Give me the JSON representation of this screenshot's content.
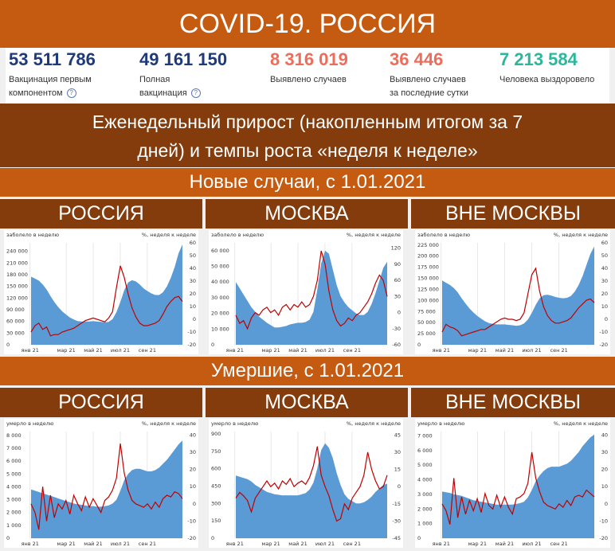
{
  "title": "COVID-19. РОССИЯ",
  "stats": [
    {
      "value": "53 511 786",
      "label_lines": [
        "Вакцинация первым",
        "компонентом"
      ],
      "help": true,
      "color": "#1f3a7a"
    },
    {
      "value": "49 161 150",
      "label_lines": [
        "Полная",
        "вакцинация"
      ],
      "help": true,
      "color": "#1f3a7a"
    },
    {
      "value": "8 316 019",
      "label_lines": [
        "Выявлено случаев"
      ],
      "help": false,
      "color": "#ef6c5a"
    },
    {
      "value": "36 446",
      "label_lines": [
        "Выявлено случаев",
        "за последние сутки"
      ],
      "help": false,
      "color": "#ef6c5a"
    },
    {
      "value": "7 213 584",
      "label_lines": [
        "Человека выздоровело"
      ],
      "help": false,
      "color": "#2cb79a"
    }
  ],
  "help_glyph": "?",
  "subtitle_lines": [
    "Еженедельный прирост (накопленным итогом за 7",
    "дней) и темпы роста «неделя к неделе»"
  ],
  "section_cases": "Новые случаи, с 1.01.2021",
  "section_deaths": "Умершие, с 1.01.2021",
  "colors": {
    "area": "#5b9bd5",
    "line": "#c00000",
    "dark_band": "#843c0c",
    "orange_band": "#c55a11"
  },
  "chart_data": [
    {
      "type": "area",
      "panel": "РОССИЯ",
      "left_axis_title": "заболело в неделю",
      "right_axis_title": "%, неделя к неделе",
      "x_ticks": [
        "янв 21",
        "мар 21",
        "май 21",
        "июл 21",
        "сен 21"
      ],
      "y_left_ticks": [
        0,
        30000,
        60000,
        90000,
        120000,
        150000,
        180000,
        210000,
        240000
      ],
      "y_left_labels": [
        "0",
        "30 000",
        "60 000",
        "90 000",
        "120 000",
        "150 000",
        "180 000",
        "210 000",
        "240 000"
      ],
      "ylim_left": [
        0,
        262000
      ],
      "y_right_ticks": [
        -20,
        -10,
        0,
        10,
        20,
        30,
        40,
        50,
        60
      ],
      "ylim_right": [
        -20,
        60
      ],
      "series": [
        {
          "kind": "area",
          "axis": "left",
          "values": [
            175000,
            170000,
            165000,
            155000,
            142000,
            125000,
            110000,
            97000,
            86000,
            78000,
            70000,
            65000,
            61000,
            60000,
            60000,
            60000,
            61000,
            60000,
            59000,
            58000,
            59000,
            66000,
            84000,
            110000,
            140000,
            160000,
            166000,
            163000,
            155000,
            145000,
            138000,
            132000,
            128000,
            128000,
            135000,
            150000,
            172000,
            200000,
            235000,
            258000
          ]
        },
        {
          "kind": "line",
          "axis": "right",
          "values": [
            -10,
            -5,
            -3,
            -8,
            -6,
            -13,
            -12,
            -12,
            -10,
            -9,
            -8,
            -7,
            -5,
            -3,
            -1,
            0,
            1,
            0,
            -1,
            -2,
            1,
            6,
            25,
            42,
            33,
            20,
            9,
            2,
            -3,
            -5,
            -5,
            -4,
            -3,
            -1,
            4,
            10,
            14,
            17,
            18,
            14
          ]
        }
      ]
    },
    {
      "type": "area",
      "panel": "МОСКВА",
      "left_axis_title": "заболело в неделю",
      "right_axis_title": "%, неделя к неделе",
      "x_ticks": [
        "янв 21",
        "мар 21",
        "май 21",
        "июл 21",
        "сен 21"
      ],
      "y_left_ticks": [
        0,
        10000,
        20000,
        30000,
        40000,
        50000,
        60000
      ],
      "y_left_labels": [
        "0",
        "10 000",
        "20 000",
        "30 000",
        "40 000",
        "50 000",
        "60 000"
      ],
      "ylim_left": [
        0,
        65000
      ],
      "y_right_ticks": [
        -60,
        -30,
        0,
        30,
        60,
        90,
        120
      ],
      "ylim_right": [
        -60,
        130
      ],
      "series": [
        {
          "kind": "area",
          "axis": "left",
          "values": [
            40000,
            36000,
            32000,
            28000,
            24000,
            21000,
            18000,
            16000,
            14000,
            12500,
            11000,
            11000,
            11500,
            12000,
            13000,
            13500,
            14000,
            14000,
            14500,
            16000,
            21000,
            35000,
            52000,
            60000,
            58000,
            48000,
            38000,
            31000,
            27000,
            24000,
            22000,
            20000,
            19000,
            19000,
            21000,
            26000,
            33000,
            41000,
            49000,
            53000
          ]
        },
        {
          "kind": "line",
          "axis": "right",
          "values": [
            -5,
            -20,
            -15,
            -30,
            -10,
            0,
            -5,
            5,
            10,
            0,
            5,
            -5,
            10,
            15,
            5,
            15,
            10,
            20,
            10,
            15,
            30,
            60,
            115,
            90,
            40,
            5,
            -15,
            -25,
            -20,
            -10,
            -15,
            -5,
            0,
            10,
            20,
            35,
            55,
            70,
            60,
            30
          ]
        }
      ]
    },
    {
      "type": "area",
      "panel": "ВНЕ МОСКВЫ",
      "left_axis_title": "заболело в неделю",
      "right_axis_title": "%, неделя к неделе",
      "x_ticks": [
        "янв 21",
        "мар 21",
        "май 21",
        "июл 21",
        "сен 21"
      ],
      "y_left_ticks": [
        0,
        25000,
        50000,
        75000,
        100000,
        125000,
        150000,
        175000,
        200000,
        225000
      ],
      "y_left_labels": [
        "0",
        "25 000",
        "50 000",
        "75 000",
        "100 000",
        "125 000",
        "150 000",
        "175 000",
        "200 000",
        "225 000"
      ],
      "ylim_left": [
        0,
        230000
      ],
      "y_right_ticks": [
        -20,
        -10,
        0,
        10,
        20,
        30,
        40,
        50,
        60
      ],
      "ylim_right": [
        -20,
        60
      ],
      "series": [
        {
          "kind": "area",
          "axis": "left",
          "values": [
            145000,
            140000,
            135000,
            128000,
            118000,
            105000,
            93000,
            82000,
            73000,
            65000,
            59000,
            53000,
            49000,
            47000,
            46000,
            46000,
            46000,
            45000,
            44000,
            43000,
            44000,
            48000,
            57000,
            72000,
            90000,
            105000,
            112000,
            113000,
            111000,
            108000,
            106000,
            105000,
            106000,
            110000,
            120000,
            135000,
            155000,
            180000,
            205000,
            222000
          ]
        },
        {
          "kind": "line",
          "axis": "right",
          "values": [
            -10,
            -4,
            -6,
            -7,
            -9,
            -13,
            -12,
            -11,
            -10,
            -9,
            -8,
            -8,
            -6,
            -4,
            -2,
            0,
            1,
            0,
            0,
            -1,
            0,
            5,
            20,
            35,
            40,
            22,
            10,
            3,
            -1,
            -3,
            -3,
            -2,
            -1,
            1,
            5,
            9,
            12,
            15,
            16,
            13
          ]
        }
      ]
    },
    {
      "type": "area",
      "panel": "РОССИЯ",
      "left_axis_title": "умерло в неделю",
      "right_axis_title": "%, неделя к неделе",
      "x_ticks": [
        "янв 21",
        "мар 21",
        "май 21",
        "июл 21",
        "сен 21"
      ],
      "y_left_ticks": [
        0,
        1000,
        2000,
        3000,
        4000,
        5000,
        6000,
        7000,
        8000
      ],
      "y_left_labels": [
        "0",
        "1 000",
        "2 000",
        "3 000",
        "4 000",
        "5 000",
        "6 000",
        "7 000",
        "8 000"
      ],
      "ylim_left": [
        0,
        8300
      ],
      "y_right_ticks": [
        -20,
        -10,
        0,
        10,
        20,
        30,
        40
      ],
      "ylim_right": [
        -20,
        42
      ],
      "series": [
        {
          "kind": "area",
          "axis": "left",
          "values": [
            3800,
            3700,
            3600,
            3500,
            3400,
            3300,
            3200,
            3100,
            3000,
            2900,
            2800,
            2700,
            2650,
            2600,
            2550,
            2500,
            2500,
            2450,
            2450,
            2500,
            2550,
            2700,
            3000,
            3700,
            4500,
            5000,
            5300,
            5400,
            5400,
            5300,
            5200,
            5200,
            5300,
            5500,
            5800,
            6100,
            6500,
            6900,
            7300,
            7600
          ]
        },
        {
          "kind": "line",
          "axis": "right",
          "values": [
            0,
            -5,
            -15,
            10,
            -10,
            5,
            -8,
            0,
            -3,
            2,
            -6,
            5,
            0,
            -4,
            4,
            -2,
            3,
            -1,
            -5,
            2,
            4,
            8,
            15,
            35,
            18,
            8,
            2,
            0,
            -1,
            -2,
            0,
            -3,
            1,
            -2,
            3,
            5,
            4,
            7,
            6,
            3
          ]
        }
      ]
    },
    {
      "type": "area",
      "panel": "МОСКВА",
      "left_axis_title": "умерло в неделю",
      "right_axis_title": "%, неделя к неделе",
      "x_ticks": [
        "янв 21",
        "мар 21",
        "май 21",
        "июл 21",
        "сен 21"
      ],
      "y_left_ticks": [
        0,
        150,
        300,
        450,
        600,
        750,
        900
      ],
      "y_left_labels": [
        "0",
        "150",
        "300",
        "450",
        "600",
        "750",
        "900"
      ],
      "ylim_left": [
        0,
        920
      ],
      "y_right_ticks": [
        -45,
        -30,
        -15,
        0,
        15,
        30,
        45
      ],
      "ylim_right": [
        -45,
        48
      ],
      "series": [
        {
          "kind": "area",
          "axis": "left",
          "values": [
            540,
            530,
            520,
            510,
            490,
            460,
            440,
            420,
            400,
            390,
            380,
            375,
            370,
            370,
            370,
            370,
            370,
            380,
            390,
            420,
            480,
            600,
            760,
            820,
            780,
            690,
            560,
            460,
            380,
            340,
            320,
            300,
            300,
            310,
            330,
            360,
            400,
            430,
            460,
            470
          ]
        },
        {
          "kind": "line",
          "axis": "right",
          "values": [
            -10,
            -5,
            -8,
            -12,
            -22,
            -10,
            -5,
            0,
            5,
            0,
            3,
            -2,
            5,
            2,
            7,
            0,
            3,
            5,
            2,
            8,
            18,
            35,
            10,
            0,
            -8,
            -20,
            -30,
            -28,
            -15,
            -20,
            -10,
            -5,
            0,
            10,
            30,
            15,
            5,
            -2,
            0,
            10
          ]
        }
      ]
    },
    {
      "type": "area",
      "panel": "ВНЕ МОСКВЫ",
      "left_axis_title": "умерло в неделю",
      "right_axis_title": "%, неделя к неделе",
      "x_ticks": [
        "янв 21",
        "мар 21",
        "май 21",
        "июл 21",
        "сен 21"
      ],
      "y_left_ticks": [
        0,
        1000,
        2000,
        3000,
        4000,
        5000,
        6000,
        7000
      ],
      "y_left_labels": [
        "0",
        "1 000",
        "2 000",
        "3 000",
        "4 000",
        "5 000",
        "6 000",
        "7 000"
      ],
      "ylim_left": [
        0,
        7300
      ],
      "y_right_ticks": [
        -20,
        -10,
        0,
        10,
        20,
        30,
        40
      ],
      "ylim_right": [
        -20,
        42
      ],
      "series": [
        {
          "kind": "area",
          "axis": "left",
          "values": [
            3200,
            3150,
            3100,
            3000,
            2950,
            2900,
            2800,
            2700,
            2600,
            2550,
            2500,
            2450,
            2400,
            2350,
            2300,
            2300,
            2300,
            2300,
            2300,
            2350,
            2400,
            2500,
            2800,
            3300,
            3900,
            4300,
            4600,
            4800,
            4900,
            4900,
            4900,
            5000,
            5100,
            5300,
            5600,
            5900,
            6300,
            6600,
            6900,
            7100
          ]
        },
        {
          "kind": "line",
          "axis": "right",
          "values": [
            0,
            -4,
            -12,
            15,
            -8,
            4,
            -6,
            2,
            -4,
            3,
            -5,
            6,
            -1,
            -3,
            5,
            -2,
            4,
            -2,
            -6,
            3,
            4,
            6,
            12,
            30,
            15,
            7,
            1,
            -1,
            -2,
            -3,
            0,
            -2,
            2,
            -1,
            4,
            5,
            4,
            8,
            6,
            4
          ]
        }
      ]
    }
  ]
}
